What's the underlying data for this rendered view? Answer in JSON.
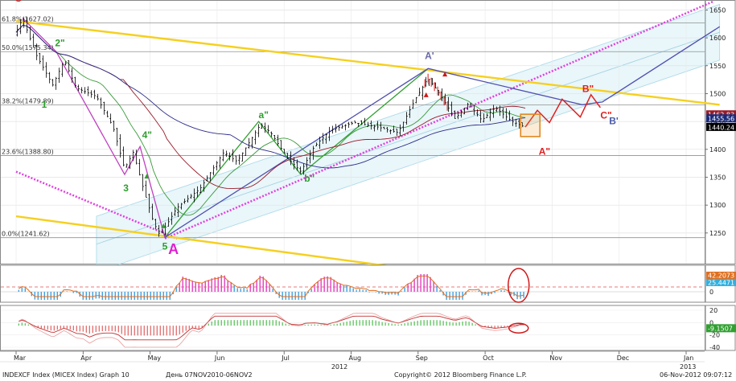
{
  "chart_data": {
    "type": "line",
    "x_axis": {
      "months": [
        {
          "label": "Mar",
          "t": 0
        },
        {
          "label": "Apr",
          "t": 1
        },
        {
          "label": "May",
          "t": 2
        },
        {
          "label": "Jun",
          "t": 3
        },
        {
          "label": "Jul",
          "t": 4
        },
        {
          "label": "Aug",
          "t": 5
        },
        {
          "label": "Sep",
          "t": 6
        },
        {
          "label": "Oct",
          "t": 7
        },
        {
          "label": "Nov",
          "t": 8
        },
        {
          "label": "Dec",
          "t": 9
        },
        {
          "label": "Jan",
          "t": 10
        }
      ],
      "years": [
        {
          "label": "2012",
          "t": 4.8
        },
        {
          "label": "2013",
          "t": 10
        }
      ]
    },
    "y_axis": {
      "range": [
        1195,
        1665
      ],
      "ticks": [
        1250,
        1300,
        1350,
        1400,
        1450,
        1500,
        1550,
        1600,
        1650
      ],
      "price_badges": [
        {
          "label": "1462.83",
          "value": 1462.8,
          "color": "#9a1a28"
        },
        {
          "label": "1455.56",
          "value": 1455.6,
          "color": "#1a2a7a"
        },
        {
          "label": "1440.24",
          "value": 1440.2,
          "color": "#000000"
        }
      ]
    },
    "fib_levels": [
      {
        "label": "61.8%(1627.02)",
        "value": 1627.0
      },
      {
        "label": "50.0%(1575.34)",
        "value": 1575.3
      },
      {
        "label": "38.2%(1479.89)",
        "value": 1479.9
      },
      {
        "label": "23.6%(1388.80)",
        "value": 1388.8
      },
      {
        "label": "0.0%(1241.62)",
        "value": 1241.6
      }
    ],
    "price_series": {
      "name": "INDEXCF Index",
      "keypoints": [
        [
          0,
          1610
        ],
        [
          0.1,
          1635
        ],
        [
          0.3,
          1570
        ],
        [
          0.55,
          1515
        ],
        [
          0.72,
          1560
        ],
        [
          0.9,
          1510
        ],
        [
          1.2,
          1495
        ],
        [
          1.45,
          1440
        ],
        [
          1.62,
          1365
        ],
        [
          1.75,
          1395
        ],
        [
          1.9,
          1330
        ],
        [
          2.05,
          1270
        ],
        [
          2.15,
          1245
        ],
        [
          2.4,
          1295
        ],
        [
          2.75,
          1330
        ],
        [
          3.1,
          1395
        ],
        [
          3.3,
          1378
        ],
        [
          3.65,
          1445
        ],
        [
          3.8,
          1430
        ],
        [
          4.05,
          1385
        ],
        [
          4.25,
          1360
        ],
        [
          4.45,
          1405
        ],
        [
          4.7,
          1435
        ],
        [
          5.05,
          1448
        ],
        [
          5.4,
          1440
        ],
        [
          5.7,
          1430
        ],
        [
          5.95,
          1488
        ],
        [
          6.15,
          1528
        ],
        [
          6.32,
          1500
        ],
        [
          6.55,
          1455
        ],
        [
          6.75,
          1482
        ],
        [
          6.95,
          1452
        ],
        [
          7.15,
          1475
        ],
        [
          7.4,
          1450
        ],
        [
          7.6,
          1440
        ]
      ]
    },
    "projection": {
      "color": "#e02020",
      "points": [
        [
          7.6,
          1440
        ],
        [
          7.78,
          1470
        ],
        [
          7.96,
          1448
        ],
        [
          8.15,
          1490
        ],
        [
          8.42,
          1458
        ],
        [
          8.58,
          1498
        ],
        [
          8.72,
          1475
        ]
      ]
    },
    "trendlines": [
      {
        "name": "magenta-dotted-upper",
        "color": "#e040e0",
        "style": "dotted",
        "points": [
          [
            2.22,
            1240
          ],
          [
            10.4,
            1665
          ]
        ]
      },
      {
        "name": "magenta-dotted-lower",
        "color": "#e040e0",
        "style": "dotted",
        "points": [
          [
            0,
            1360
          ],
          [
            2.4,
            1240
          ]
        ]
      },
      {
        "name": "gold-upper",
        "color": "#f5d020",
        "style": "solid",
        "points": [
          [
            0,
            1630
          ],
          [
            10.5,
            1480
          ]
        ]
      },
      {
        "name": "gold-lower",
        "color": "#f5d020",
        "style": "solid",
        "points": [
          [
            0,
            1280
          ],
          [
            5.6,
            1190
          ]
        ]
      },
      {
        "name": "purple-wave",
        "color": "#c040c0",
        "style": "solid",
        "points": [
          [
            0.1,
            1635
          ],
          [
            0.6,
            1575
          ],
          [
            1.62,
            1355
          ],
          [
            1.85,
            1405
          ],
          [
            2.22,
            1242
          ]
        ]
      },
      {
        "name": "green-abc",
        "color": "#30a030",
        "style": "solid",
        "points": [
          [
            2.22,
            1242
          ],
          [
            3.62,
            1450
          ],
          [
            4.25,
            1355
          ],
          [
            6.15,
            1545
          ]
        ]
      },
      {
        "name": "blue-channel",
        "color": "#5050b0",
        "style": "solid",
        "points": [
          [
            2.22,
            1242
          ],
          [
            6.15,
            1545
          ],
          [
            8.45,
            1480
          ],
          [
            8.75,
            1485
          ],
          [
            10.5,
            1620
          ]
        ]
      }
    ],
    "channel_band": {
      "color": "#bfe6f0",
      "polygon": [
        [
          1.2,
          1280
        ],
        [
          10.5,
          1660
        ],
        [
          10.5,
          1560
        ],
        [
          1.2,
          1180
        ]
      ]
    },
    "wave_labels": [
      {
        "label": "C'",
        "t": -0.02,
        "value": 1665,
        "color": "#c82828"
      },
      {
        "label": "2\"",
        "t": 0.58,
        "value": 1585,
        "color": "#2e9e2e"
      },
      {
        "label": "1",
        "t": 0.38,
        "value": 1475,
        "color": "#2e9e2e"
      },
      {
        "label": "4\"",
        "t": 1.88,
        "value": 1420,
        "color": "#2e9e2e"
      },
      {
        "label": "3",
        "t": 1.6,
        "value": 1325,
        "color": "#2e9e2e"
      },
      {
        "label": "5",
        "t": 2.18,
        "value": 1220,
        "color": "#2e9e2e"
      },
      {
        "label": "A",
        "t": 2.27,
        "value": 1212,
        "color": "#e020d0"
      },
      {
        "label": "a\"",
        "t": 3.62,
        "value": 1456,
        "color": "#2e9e2e"
      },
      {
        "label": "b\"",
        "t": 4.3,
        "value": 1342,
        "color": "#2e9e2e"
      },
      {
        "label": "A'",
        "t": 6.1,
        "value": 1562,
        "color": "#6868a8"
      },
      {
        "label": "B\"",
        "t": 8.45,
        "value": 1503,
        "color": "#e02020"
      },
      {
        "label": "C\"",
        "t": 8.72,
        "value": 1455,
        "color": "#e02020"
      },
      {
        "label": "B'",
        "t": 8.85,
        "value": 1445,
        "color": "#4a5aa8"
      },
      {
        "label": "A\"",
        "t": 7.8,
        "value": 1390,
        "color": "#e02020"
      }
    ],
    "indicator_1": {
      "ticks": [
        0
      ],
      "badges": [
        {
          "label": "42.2073",
          "value": 42.2,
          "color": "#e07020"
        },
        {
          "label": "25.4471",
          "value": 25.4,
          "color": "#30b0e0"
        }
      ]
    },
    "indicator_2": {
      "ticks": [
        20,
        0,
        -20,
        -40
      ],
      "badges": [
        {
          "label": "-9.1507",
          "value": -9.15,
          "color": "#30a030"
        }
      ]
    }
  },
  "footer": {
    "index": "INDEXCF Index (MICEX Index) Graph 10",
    "period": "День 07NOV2010-06NOV2",
    "copyright": "Copyright© 2012 Bloomberg Finance L.P.",
    "timestamp": "06-Nov-2012 09:07:12"
  }
}
